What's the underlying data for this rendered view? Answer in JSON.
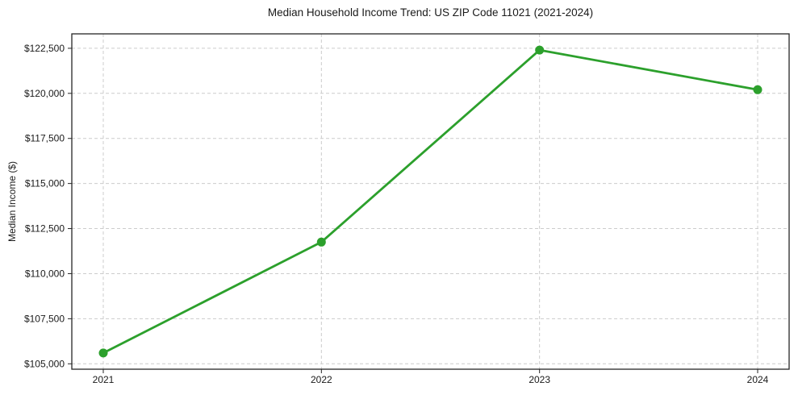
{
  "figure": {
    "background_color": "#ffffff",
    "text_color": "#1a1a1a",
    "axis_color": "#262626"
  },
  "chart_data": {
    "type": "line",
    "title": "Median Household Income Trend: US ZIP Code 11021 (2021-2024)",
    "xlabel": "",
    "ylabel": "Median Income ($)",
    "categories": [
      "2021",
      "2022",
      "2023",
      "2024"
    ],
    "series": [
      {
        "name": "Median Household Income",
        "color": "#2ca02c",
        "marker": "circle",
        "values": [
          105600,
          111750,
          122400,
          120200
        ]
      }
    ],
    "yticks": [
      105000,
      107500,
      110000,
      112500,
      115000,
      117500,
      120000,
      122500
    ],
    "ytick_labels": [
      "$105,000",
      "$107,500",
      "$110,000",
      "$112,500",
      "$115,000",
      "$117,500",
      "$120,000",
      "$122,500"
    ],
    "ylim": [
      104700,
      123300
    ],
    "grid": true,
    "grid_style": "dashed",
    "grid_color": "#cccccc",
    "legend_position": "none"
  }
}
